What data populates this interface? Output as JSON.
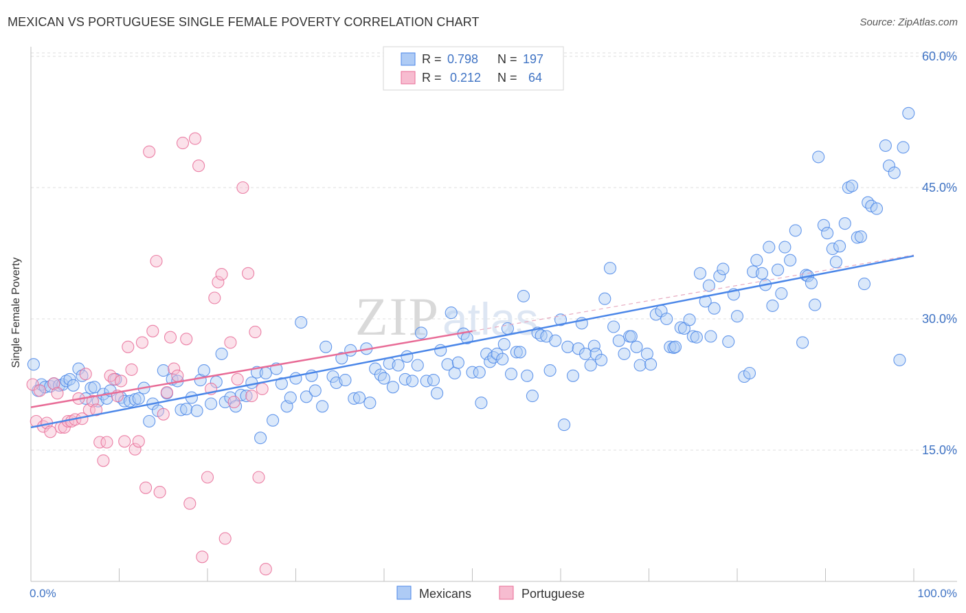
{
  "header": {
    "title": "MEXICAN VS PORTUGUESE SINGLE FEMALE POVERTY CORRELATION CHART",
    "source": "Source: ZipAtlas.com"
  },
  "watermark": "ZIPatlas",
  "colors": {
    "blue": "#4a86e8",
    "blue_fill": "#aecbf5",
    "pink": "#e86b96",
    "pink_fill": "#f7bcd0",
    "accent_text": "#3f73c4"
  },
  "chart_data": {
    "type": "scatter",
    "title": "MEXICAN VS PORTUGUESE SINGLE FEMALE POVERTY CORRELATION CHART",
    "xlabel": "",
    "ylabel": "Single Female Poverty",
    "xlim": [
      0,
      100
    ],
    "ylim": [
      0,
      63
    ],
    "x_tick_labels": [
      "0.0%",
      "100.0%"
    ],
    "y_ticks": [
      15,
      30,
      45,
      60
    ],
    "y_tick_labels": [
      "15.0%",
      "30.0%",
      "45.0%",
      "60.0%"
    ],
    "grid": true,
    "legend_position": "top-center",
    "stats": [
      {
        "r_label": "R =",
        "r": "0.798",
        "n_label": "N =",
        "n": "197"
      },
      {
        "r_label": "R =",
        "r": "0.212",
        "n_label": "N =",
        "n": "64"
      }
    ],
    "series": [
      {
        "name": "Mexicans",
        "color": "#4a86e8",
        "trend": {
          "x": [
            0,
            100
          ],
          "y": [
            17.6,
            37.2
          ]
        },
        "points": [
          [
            0.3,
            24.8
          ],
          [
            0.8,
            21.8
          ],
          [
            1.2,
            22.5
          ],
          [
            1.6,
            22.2
          ],
          [
            2.2,
            22.3
          ],
          [
            2.6,
            22.6
          ],
          [
            3.2,
            22.4
          ],
          [
            3.6,
            22.5
          ],
          [
            4,
            22.9
          ],
          [
            4.4,
            23.1
          ],
          [
            4.8,
            22.4
          ],
          [
            5.4,
            24.3
          ],
          [
            5.8,
            23.5
          ],
          [
            6.2,
            20.9
          ],
          [
            6.8,
            22.1
          ],
          [
            7.2,
            22.2
          ],
          [
            7.6,
            20.6
          ],
          [
            8.2,
            21.4
          ],
          [
            8.6,
            20.9
          ],
          [
            9,
            21.8
          ],
          [
            9.6,
            23.1
          ],
          [
            10.2,
            21
          ],
          [
            10.6,
            20.6
          ],
          [
            11.2,
            20.6
          ],
          [
            11.8,
            20.8
          ],
          [
            12.2,
            20.9
          ],
          [
            12.8,
            22.1
          ],
          [
            13.4,
            18.3
          ],
          [
            13.8,
            20.3
          ],
          [
            14.4,
            19.5
          ],
          [
            15,
            24.1
          ],
          [
            15.4,
            21.5
          ],
          [
            16,
            23.1
          ],
          [
            16.6,
            22.9
          ],
          [
            17,
            19.6
          ],
          [
            17.6,
            19.7
          ],
          [
            18.2,
            21
          ],
          [
            18.8,
            19.5
          ],
          [
            19.2,
            23
          ],
          [
            19.6,
            24.1
          ],
          [
            20.4,
            20.3
          ],
          [
            21,
            22.8
          ],
          [
            21.6,
            26
          ],
          [
            22,
            20.5
          ],
          [
            22.6,
            21
          ],
          [
            23.2,
            20
          ],
          [
            23.8,
            21.3
          ],
          [
            24.4,
            21.2
          ],
          [
            25,
            22.7
          ],
          [
            25.6,
            23.9
          ],
          [
            26,
            16.4
          ],
          [
            26.6,
            23.8
          ],
          [
            27.4,
            18.4
          ],
          [
            27.8,
            24.3
          ],
          [
            28.4,
            22.6
          ],
          [
            29,
            20
          ],
          [
            29.4,
            21
          ],
          [
            30,
            23.2
          ],
          [
            30.6,
            29.6
          ],
          [
            31.2,
            21.1
          ],
          [
            31.8,
            23.5
          ],
          [
            32.2,
            21.8
          ],
          [
            33,
            20
          ],
          [
            33.4,
            26.8
          ],
          [
            34.2,
            23.4
          ],
          [
            34.6,
            22.7
          ],
          [
            35.2,
            25.5
          ],
          [
            35.6,
            23
          ],
          [
            36.2,
            26.4
          ],
          [
            36.6,
            20.9
          ],
          [
            37.2,
            21
          ],
          [
            38,
            26.6
          ],
          [
            38.4,
            20.4
          ],
          [
            39,
            24.3
          ],
          [
            39.6,
            23.6
          ],
          [
            40,
            23.2
          ],
          [
            40.6,
            24.9
          ],
          [
            41,
            22.2
          ],
          [
            41.6,
            24.7
          ],
          [
            42.4,
            23.1
          ],
          [
            42.6,
            25.7
          ],
          [
            43.2,
            22.9
          ],
          [
            43.8,
            24.7
          ],
          [
            44.2,
            28.4
          ],
          [
            44.8,
            22.9
          ],
          [
            45.6,
            23
          ],
          [
            46,
            21.5
          ],
          [
            46.4,
            26.4
          ],
          [
            47.2,
            24.8
          ],
          [
            47.6,
            30.7
          ],
          [
            48,
            23.8
          ],
          [
            48.4,
            25
          ],
          [
            49,
            28.3
          ],
          [
            49.4,
            27.8
          ],
          [
            50,
            23.9
          ],
          [
            50.8,
            23.9
          ],
          [
            51,
            20.4
          ],
          [
            51.6,
            26
          ],
          [
            52,
            25.1
          ],
          [
            52.4,
            25.6
          ],
          [
            52.8,
            26
          ],
          [
            53.4,
            25.4
          ],
          [
            53.6,
            27.1
          ],
          [
            54,
            28.9
          ],
          [
            54.4,
            23.7
          ],
          [
            55,
            26.2
          ],
          [
            55.4,
            26.2
          ],
          [
            55.8,
            32.6
          ],
          [
            56.2,
            23.5
          ],
          [
            56.8,
            21.2
          ],
          [
            57.4,
            28.4
          ],
          [
            57.8,
            28.1
          ],
          [
            58.4,
            28
          ],
          [
            58.8,
            24.1
          ],
          [
            59.4,
            27.5
          ],
          [
            60,
            29.9
          ],
          [
            60.4,
            17.9
          ],
          [
            60.8,
            26.8
          ],
          [
            61.4,
            23.5
          ],
          [
            62,
            26.6
          ],
          [
            62.4,
            29.5
          ],
          [
            62.8,
            26
          ],
          [
            63.4,
            24.7
          ],
          [
            63.8,
            26.9
          ],
          [
            64,
            26
          ],
          [
            64.6,
            25.3
          ],
          [
            65,
            32.3
          ],
          [
            65.6,
            35.8
          ],
          [
            66,
            29.1
          ],
          [
            66.6,
            27.5
          ],
          [
            67.2,
            26
          ],
          [
            67.8,
            28
          ],
          [
            68,
            28
          ],
          [
            68.6,
            26.8
          ],
          [
            69,
            24.7
          ],
          [
            69.8,
            26
          ],
          [
            70.2,
            24.8
          ],
          [
            70.8,
            30.5
          ],
          [
            71.4,
            30.9
          ],
          [
            72,
            30
          ],
          [
            72.4,
            26.8
          ],
          [
            72.8,
            26.7
          ],
          [
            73,
            26.8
          ],
          [
            73.6,
            29
          ],
          [
            74,
            28.9
          ],
          [
            74.6,
            29.9
          ],
          [
            75,
            28
          ],
          [
            75.4,
            27.9
          ],
          [
            75.8,
            35.2
          ],
          [
            76.4,
            32
          ],
          [
            76.8,
            33.8
          ],
          [
            77,
            28
          ],
          [
            77.4,
            31.2
          ],
          [
            78,
            34.9
          ],
          [
            78.4,
            35.7
          ],
          [
            79,
            27.4
          ],
          [
            79.6,
            32.8
          ],
          [
            80,
            30.3
          ],
          [
            80.8,
            23.4
          ],
          [
            81.4,
            23.8
          ],
          [
            81.8,
            35.4
          ],
          [
            82.2,
            36.7
          ],
          [
            82.8,
            35.2
          ],
          [
            83.2,
            33.9
          ],
          [
            83.6,
            38.2
          ],
          [
            84,
            31.5
          ],
          [
            84.6,
            35.6
          ],
          [
            85,
            32.9
          ],
          [
            85.4,
            38.2
          ],
          [
            86,
            36.7
          ],
          [
            86.6,
            40.1
          ],
          [
            87.4,
            27.3
          ],
          [
            87.8,
            35
          ],
          [
            88,
            34.9
          ],
          [
            88.4,
            34.1
          ],
          [
            88.8,
            31.6
          ],
          [
            89.2,
            48.5
          ],
          [
            89.8,
            40.7
          ],
          [
            90.2,
            39.8
          ],
          [
            90.8,
            38
          ],
          [
            91.2,
            36.5
          ],
          [
            91.6,
            38.3
          ],
          [
            92.2,
            40.9
          ],
          [
            92.6,
            45
          ],
          [
            93,
            45.2
          ],
          [
            93.6,
            39.3
          ],
          [
            94,
            39.4
          ],
          [
            94.4,
            34
          ],
          [
            94.8,
            43.3
          ],
          [
            95.2,
            42.9
          ],
          [
            95.8,
            42.6
          ],
          [
            96.8,
            49.8
          ],
          [
            97.2,
            47.5
          ],
          [
            97.8,
            46.7
          ],
          [
            98.4,
            25.3
          ],
          [
            98.8,
            49.6
          ],
          [
            99.4,
            53.5
          ]
        ]
      },
      {
        "name": "Portuguese",
        "color": "#e86b96",
        "trend": {
          "x": [
            0,
            50
          ],
          "y": [
            19.9,
            28.6
          ]
        },
        "points": [
          [
            0.2,
            22.5
          ],
          [
            0.6,
            18.3
          ],
          [
            1,
            21.8
          ],
          [
            1.4,
            17.7
          ],
          [
            1.8,
            18.1
          ],
          [
            2.2,
            17.1
          ],
          [
            2.6,
            22.6
          ],
          [
            3,
            21.5
          ],
          [
            3.4,
            17.6
          ],
          [
            3.8,
            17.6
          ],
          [
            4.2,
            18.3
          ],
          [
            4.6,
            18.3
          ],
          [
            5,
            18.5
          ],
          [
            5.4,
            20.9
          ],
          [
            5.8,
            18.6
          ],
          [
            6.2,
            23.7
          ],
          [
            6.6,
            19.6
          ],
          [
            7,
            20.6
          ],
          [
            7.4,
            19.6
          ],
          [
            7.8,
            15.9
          ],
          [
            8.2,
            13.8
          ],
          [
            8.6,
            15.9
          ],
          [
            9,
            23.5
          ],
          [
            9.4,
            23.1
          ],
          [
            9.8,
            21.2
          ],
          [
            10.2,
            22.9
          ],
          [
            10.6,
            16
          ],
          [
            11,
            26.8
          ],
          [
            11.4,
            24.2
          ],
          [
            11.8,
            15.1
          ],
          [
            12.2,
            16
          ],
          [
            12.6,
            27.3
          ],
          [
            13,
            10.7
          ],
          [
            13.4,
            49.1
          ],
          [
            13.8,
            28.6
          ],
          [
            14.2,
            36.6
          ],
          [
            14.6,
            10.2
          ],
          [
            15,
            19.1
          ],
          [
            15.4,
            21.6
          ],
          [
            15.8,
            27.9
          ],
          [
            16.2,
            24.3
          ],
          [
            16.6,
            23.5
          ],
          [
            17.2,
            50.1
          ],
          [
            17.6,
            27.7
          ],
          [
            18,
            8.9
          ],
          [
            18.6,
            50.6
          ],
          [
            19,
            47.5
          ],
          [
            19.4,
            2.8
          ],
          [
            20,
            11.9
          ],
          [
            20.4,
            22
          ],
          [
            20.8,
            32.4
          ],
          [
            21.2,
            34.2
          ],
          [
            21.6,
            35.1
          ],
          [
            22,
            4.9
          ],
          [
            22.6,
            27.3
          ],
          [
            23,
            20.5
          ],
          [
            23.4,
            23.1
          ],
          [
            24,
            45
          ],
          [
            24.6,
            35.2
          ],
          [
            25,
            21.2
          ],
          [
            25.4,
            28.5
          ],
          [
            25.8,
            11.9
          ],
          [
            26.2,
            22
          ],
          [
            26.6,
            1.4
          ]
        ]
      }
    ]
  }
}
